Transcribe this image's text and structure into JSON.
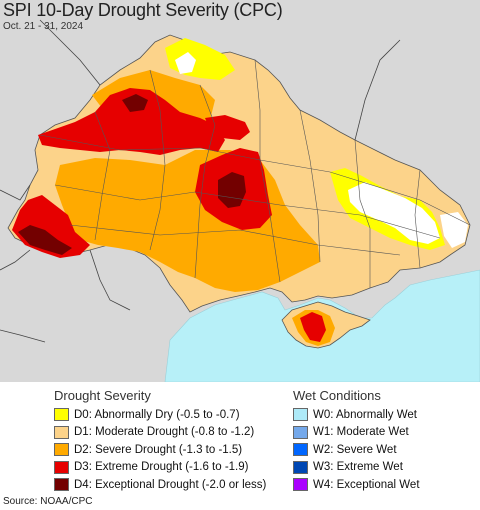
{
  "header": {
    "title": "SPI 10-Day Drought Severity (CPC)",
    "subtitle": "Oct. 21 - 31, 2024"
  },
  "legend_drought": {
    "heading": "Drought Severity",
    "items": [
      {
        "label": "D0: Abnormally Dry (-0.5 to -0.7)",
        "color": "#ffff00"
      },
      {
        "label": "D1: Moderate Drought (-0.8 to -1.2)",
        "color": "#fcd38a"
      },
      {
        "label": "D2: Severe Drought (-1.3 to -1.5)",
        "color": "#ffaa00"
      },
      {
        "label": "D3: Extreme Drought (-1.6 to -1.9)",
        "color": "#e60000"
      },
      {
        "label": "D4: Exceptional Drought (-2.0 or less)",
        "color": "#730000"
      }
    ]
  },
  "legend_wet": {
    "heading": "Wet Conditions",
    "items": [
      {
        "label": "W0: Abnormally Wet",
        "color": "#aeeaf8"
      },
      {
        "label": "W1: Moderate Wet",
        "color": "#74a8ea"
      },
      {
        "label": "W2: Severe Wet",
        "color": "#0066ff"
      },
      {
        "label": "W3: Extreme Wet",
        "color": "#0047b3"
      },
      {
        "label": "W4: Exceptional Wet",
        "color": "#aa00ff"
      }
    ]
  },
  "footer": {
    "source": "Source: NOAA/CPC"
  },
  "map_colors": {
    "sea": "#b7f0f8",
    "neighbor_land": "#d8d8d8",
    "no_drought": "#ffffff",
    "border": "#444444"
  }
}
